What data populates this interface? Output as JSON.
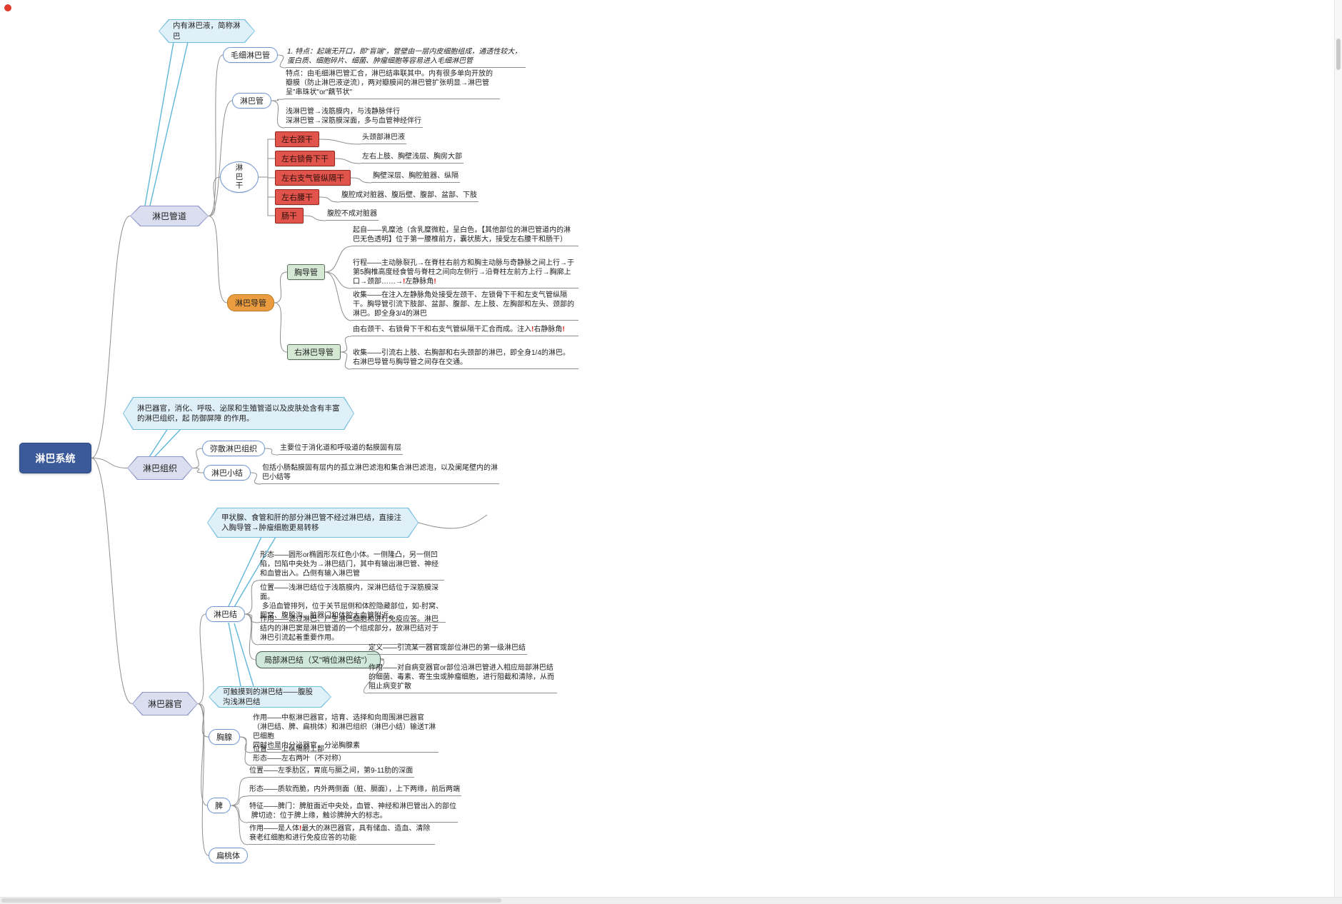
{
  "palette": {
    "root_fill": "#3b5a9a",
    "branch_hex_fill": "#dbdeef",
    "callout_fill": "#e0f0f9",
    "callout_border": "#74bedf",
    "pill_border": "#6f96d2",
    "orange_fill": "#ea9c3e",
    "green_fill": "#d5e8d4",
    "regional_fill": "#cfe8db",
    "red_fill": "#e0544b",
    "edge_gray": "#8f8f8f",
    "exclaim_red": "#e02318"
  },
  "map": {
    "root_label": "淋巴系统",
    "channels": {
      "label": "淋巴管道",
      "callout": "内有淋巴液，简称淋巴",
      "capillary": {
        "label": "毛细淋巴管",
        "note": "1. 特点：起端无开口，即\"盲端\"，管壁由一层内皮细胞组成，通透性较大，蛋白质、细胞碎片、细菌、肿瘤细胞等容易进入毛细淋巴管"
      },
      "vessel": {
        "label": "淋巴管",
        "feature": "特点：由毛细淋巴管汇合，淋巴结串联其中。内有很多单向开放的瓣膜（防止淋巴液逆流），两对瓣膜间的淋巴管扩张明显→淋巴管呈\"串珠状\"or\"藕节状\"",
        "layers": "浅淋巴管→浅筋膜内，与浅静脉伴行\n深淋巴管→深筋膜深面，多与血管神经伴行"
      },
      "trunk": {
        "label": "淋\n巴\n干",
        "items": [
          {
            "name": "左右颈干",
            "drains": "头颈部淋巴液"
          },
          {
            "name": "左右锁骨下干",
            "drains": "左右上肢、胸壁浅层、胸房大部"
          },
          {
            "name": "左右支气管纵隔干",
            "drains": "胸壁深层、胸腔脏器、纵隔"
          },
          {
            "name": "左右腰干",
            "drains": "腹腔成对脏器、腹后壁、腹部、盆部、下肢"
          },
          {
            "name": "肠干",
            "drains": "腹腔不成对脏器"
          }
        ]
      },
      "duct": {
        "label": "淋巴导管",
        "thoracic": {
          "label": "胸导管",
          "origin": "起自——乳糜池（含乳糜微粒，呈白色，【其他部位的淋巴管道内的淋巴无色透明】位于第一腰椎前方，囊状膨大，接受左右腰干和肠干）",
          "course": "行程——主动脉裂孔→在脊柱右前方和胸主动脉与奇静脉之间上行→于第5胸椎高度经食管与脊柱之间向左侧行→沿脊柱左前方上行→胸廓上口→颈部……→❗左静脉角❗",
          "collect": "收集——在注入左静脉角处接受左颈干、左锁骨下干和左支气管纵隔干。胸导管引流下肢部、盆部、腹部、左上肢、左胸部和左头、颈部的淋巴。即全身3/4的淋巴"
        },
        "right": {
          "label": "右淋巴导管",
          "formed": "由右颈干、右锁骨下干和右支气管纵隔干汇合而成。注入❗右静脉角❗",
          "collect": "收集——引流右上肢、右胸部和右头颈部的淋巴，即全身1/4的淋巴。\n右淋巴导管与胸导管之间存在交通。"
        }
      }
    },
    "tissue": {
      "label": "淋巴组织",
      "callout": "淋巴器官，消化、呼吸、泌尿和生殖管道以及皮肤处含有丰富的淋巴组织，起 防御屏障 的作用。",
      "diffuse": {
        "label": "弥散淋巴组织",
        "note": "主要位于消化道和呼吸道的黏膜固有层"
      },
      "nodule": {
        "label": "淋巴小结",
        "note": "包括小肠黏膜固有层内的孤立淋巴滤泡和集合淋巴滤泡，以及阑尾壁内的淋巴小结等"
      }
    },
    "organs": {
      "label": "淋巴器官",
      "callout_thyroid": "甲状腺、食管和肝的部分淋巴管不经过淋巴结，直接注入胸导管→肿瘤细胞更易转移",
      "callout_palpable": "可触摸到的淋巴结——腹股沟浅淋巴结",
      "lymph_node": {
        "label": "淋巴结",
        "form": "形态——圆形or椭圆形灰红色小体。一侧隆凸，另一侧凹陷，凹陷中央处为→淋巴结门，其中有输出淋巴管、神经和血管出入。凸侧有输入淋巴管",
        "position": "位置——浅淋巴结位于浅筋膜内，深淋巴结位于深筋膜深面。\n 多沿血管排列，位于关节屈侧和体腔隐藏部位，如-肘窝、腘窝、腹股沟、脏器门和体腔大血管附近。",
        "role": "作用——滤过淋巴、产生淋巴细胞和进行免疫应答。淋巴结内的淋巴窦是淋巴管道的一个组成部分，故淋巴结对于淋巴引流起着重要作用。",
        "regional": {
          "label": "局部淋巴结（又\"哨位淋巴结\"）",
          "definition": "定义——引流某一器官或部位淋巴的第一级淋巴结",
          "role": "作用——对自病变器官or部位沿淋巴管进入相应局部淋巴结的细菌、毒素、寄生虫或肿瘤细胞，进行阻截和清除，从而阻止病变扩散"
        }
      },
      "thymus": {
        "label": "胸腺",
        "role": "作用——中枢淋巴器官，培育、选择和向周围淋巴器官（淋巴结、脾、扁桃体）和淋巴组织（淋巴小结）输送T淋巴细胞\n同时也是内分泌器官，分泌胸腺素",
        "pos_form": "位置——上纵隔前上部\n形态——左右两叶（不对称）"
      },
      "spleen": {
        "label": "脾",
        "position": "位置——左季肋区，胃底与膈之间，第9-11肋的深面",
        "form": "形态——质软而脆，内外两侧面（脏、膈面），上下两缘，前后两端",
        "feature": "特征——脾门：脾脏面近中央处，血管、神经和淋巴管出入的部位\n 脾切迹：位于脾上缘，触诊脾肿大的标志。",
        "role": "作用——是人体❗最大的淋巴器官，具有储血、造血、清除衰老红细胞和进行免疫应答的功能"
      },
      "tonsil": {
        "label": "扁桃体"
      }
    }
  }
}
